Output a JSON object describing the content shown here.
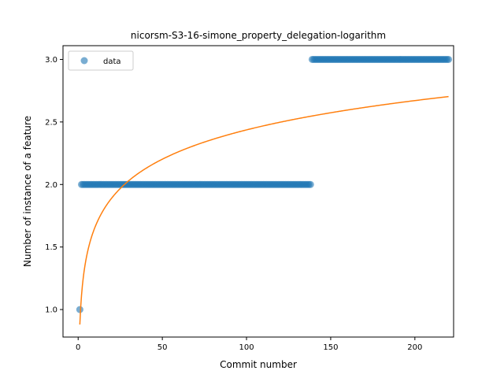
{
  "chart_data": {
    "type": "scatter",
    "title": "nicorsm-S3-16-simone_property_delegation-logarithm",
    "xlabel": "Commit number",
    "ylabel": "Number of instance of a feature",
    "xlim": [
      -9,
      223
    ],
    "ylim": [
      0.78,
      3.11
    ],
    "xticks": [
      0,
      50,
      100,
      150,
      200
    ],
    "yticks": [
      1.0,
      1.5,
      2.0,
      2.5,
      3.0
    ],
    "xtick_labels": [
      "0",
      "50",
      "100",
      "150",
      "200"
    ],
    "ytick_labels": [
      "1.0",
      "1.5",
      "2.0",
      "2.5",
      "3.0"
    ],
    "grid": false,
    "legend": {
      "position": "top-left",
      "entries": [
        "data"
      ]
    },
    "series": [
      {
        "name": "data",
        "kind": "scatter",
        "color": "#1f77b4",
        "segments": [
          {
            "x_start": 1,
            "x_end": 1,
            "y": 1
          },
          {
            "x_start": 2,
            "x_end": 138,
            "y": 2
          },
          {
            "x_start": 139,
            "x_end": 220,
            "y": 3
          }
        ]
      },
      {
        "kind": "line",
        "color": "#ff7f0e",
        "fit": {
          "model": "a + b*ln(x)",
          "a": 0.88,
          "b": 0.338
        },
        "x_range": [
          1,
          220
        ]
      }
    ]
  }
}
